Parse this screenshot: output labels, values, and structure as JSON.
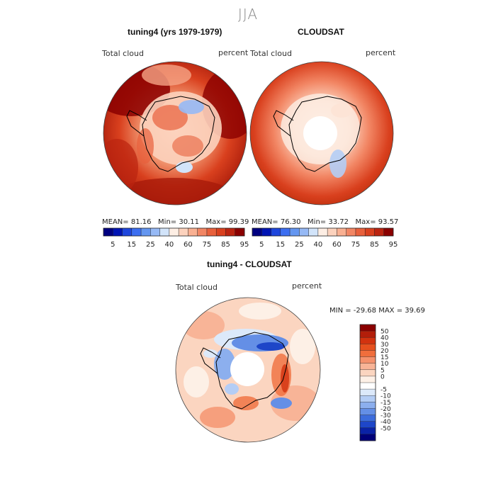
{
  "season": "JJA",
  "panels": [
    {
      "title": "tuning4 (yrs 1979-1979)",
      "variable": "Total cloud",
      "units": "percent",
      "stats": {
        "mean_label": "MEAN=",
        "mean": "81.16",
        "min_label": "Min=",
        "min": "30.11",
        "max_label": "Max=",
        "max": "99.39"
      }
    },
    {
      "title": "CLOUDSAT",
      "variable": "Total cloud",
      "units": "percent",
      "stats": {
        "mean_label": "MEAN=",
        "mean": "76.30",
        "min_label": "Min=",
        "min": "33.72",
        "max_label": "Max=",
        "max": "93.57"
      }
    },
    {
      "title": "tuning4 - CLOUDSAT",
      "variable": "Total cloud",
      "units": "percent",
      "stats_line": "MIN = -29.68  MAX =  39.69"
    }
  ],
  "colorbar_top": {
    "colors": [
      "#000080",
      "#0014b4",
      "#1e46dc",
      "#3c6ef0",
      "#6496f0",
      "#96b9f5",
      "#d2e4fa",
      "#fdeee4",
      "#fcd2bd",
      "#f9b092",
      "#f28664",
      "#e8603c",
      "#d9401e",
      "#bb2410",
      "#8b0000"
    ],
    "tick_labels": [
      "5",
      "15",
      "25",
      "40",
      "60",
      "75",
      "85",
      "95"
    ]
  },
  "colorbar_diff": {
    "colors_top_to_bottom": [
      "#8b0000",
      "#b31e0a",
      "#d2320f",
      "#e6501e",
      "#f06e3c",
      "#f5916c",
      "#f8b497",
      "#fbd5c0",
      "#fdf0e6",
      "#ffffff",
      "#dce9fa",
      "#b4cdf5",
      "#8cafee",
      "#648fe6",
      "#3c6cdc",
      "#1e46c8",
      "#0a22a6",
      "#000078"
    ],
    "tick_labels": [
      "50",
      "40",
      "30",
      "20",
      "15",
      "10",
      "5",
      "0",
      "-5",
      "-10",
      "-15",
      "-20",
      "-30",
      "-40",
      "-50"
    ]
  }
}
